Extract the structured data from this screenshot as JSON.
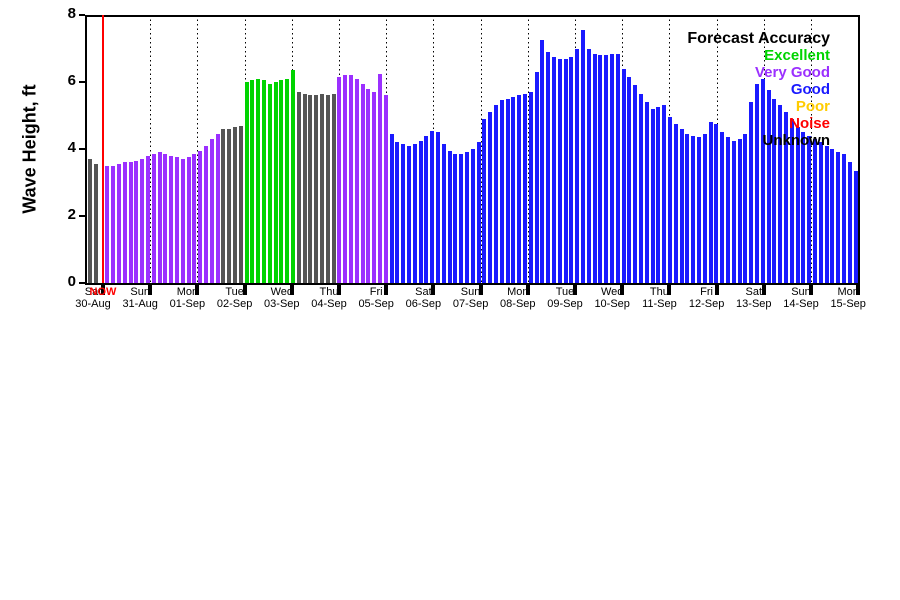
{
  "page": {
    "background": "#ffffff"
  },
  "chart_data": {
    "type": "bar",
    "title": "",
    "ylabel": "Wave Height, ft",
    "xlabel": "",
    "ylim": [
      0,
      8
    ],
    "yticks": [
      0,
      2,
      4,
      6,
      8
    ],
    "grid": "vertical-dotted",
    "x_axis": {
      "days": [
        "Sat",
        "Sun",
        "Mon",
        "Tue",
        "Wed",
        "Thu",
        "Fri",
        "Sat",
        "Sun",
        "Mon",
        "Tue",
        "Wed",
        "Thu",
        "Fri",
        "Sat",
        "Sun",
        "Mon"
      ],
      "dates": [
        "30-Aug",
        "31-Aug",
        "01-Sep",
        "02-Sep",
        "03-Sep",
        "04-Sep",
        "05-Sep",
        "06-Sep",
        "07-Sep",
        "08-Sep",
        "09-Sep",
        "10-Sep",
        "11-Sep",
        "12-Sep",
        "13-Sep",
        "14-Sep",
        "15-Sep"
      ]
    },
    "legend": {
      "title": "Forecast Accuracy",
      "position": "top-right",
      "entries": [
        {
          "label": "Excellent",
          "color": "#00d400"
        },
        {
          "label": "Very Good",
          "color": "#9b30ff"
        },
        {
          "label": "Good",
          "color": "#1a1aff"
        },
        {
          "label": "Poor",
          "color": "#ffcc00"
        },
        {
          "label": "Noise",
          "color": "#ff0000"
        },
        {
          "label": "Unknown",
          "color": "#000000"
        }
      ]
    },
    "now_marker": {
      "label": "NOW",
      "color": "#ff0000"
    },
    "category_colors": {
      "e": "#00d400",
      "v": "#9b30ff",
      "g": "#1a1aff",
      "u": "#555555"
    },
    "bar_category_runs": [
      [
        "u",
        2
      ],
      [
        "x",
        1
      ],
      [
        "v",
        20
      ],
      [
        "u",
        4
      ],
      [
        "e",
        9
      ],
      [
        "u",
        7
      ],
      [
        "v",
        9
      ],
      [
        "g",
        81
      ]
    ],
    "bar_values_ft": [
      3.7,
      3.55,
      null,
      3.5,
      3.5,
      3.55,
      3.6,
      3.6,
      3.65,
      3.7,
      3.8,
      3.85,
      3.9,
      3.85,
      3.8,
      3.75,
      3.7,
      3.75,
      3.85,
      3.95,
      4.1,
      4.3,
      4.45,
      4.6,
      4.6,
      4.65,
      4.7,
      6.0,
      6.05,
      6.1,
      6.05,
      5.95,
      6.0,
      6.05,
      6.1,
      6.35,
      5.7,
      5.65,
      5.6,
      5.6,
      5.65,
      5.6,
      5.65,
      6.15,
      6.2,
      6.2,
      6.1,
      5.95,
      5.8,
      5.7,
      6.25,
      5.6,
      4.45,
      4.2,
      4.15,
      4.1,
      4.15,
      4.25,
      4.4,
      4.55,
      4.5,
      4.15,
      3.95,
      3.85,
      3.85,
      3.9,
      4.0,
      4.2,
      4.9,
      5.1,
      5.3,
      5.45,
      5.5,
      5.55,
      5.6,
      5.65,
      5.7,
      6.3,
      7.25,
      6.9,
      6.75,
      6.7,
      6.7,
      6.75,
      7.0,
      7.55,
      7.0,
      6.85,
      6.8,
      6.8,
      6.85,
      6.85,
      6.4,
      6.15,
      5.9,
      5.65,
      5.4,
      5.2,
      5.25,
      5.3,
      4.95,
      4.75,
      4.6,
      4.45,
      4.4,
      4.35,
      4.45,
      4.8,
      4.75,
      4.5,
      4.35,
      4.25,
      4.3,
      4.45,
      5.4,
      5.95,
      6.1,
      5.75,
      5.5,
      5.3,
      5.1,
      4.9,
      4.65,
      4.5,
      4.4,
      4.3,
      4.2,
      4.1,
      4.0,
      3.9,
      3.85,
      3.6,
      3.35
    ]
  }
}
